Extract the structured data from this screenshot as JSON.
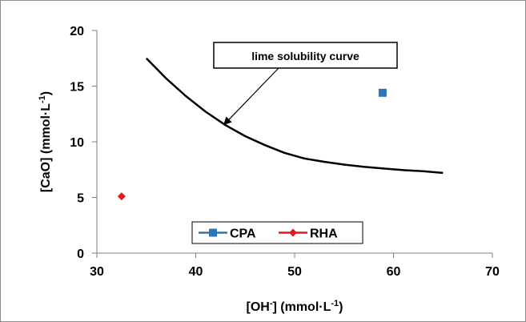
{
  "chart_data": {
    "type": "scatter",
    "title": "",
    "xlabel": "[OH-] (mmol·L-1)",
    "ylabel": "[CaO] (mmol·L-1)",
    "xlabel_parts": {
      "base": "[OH",
      "sup1": "-",
      "mid": "] (mmol·L",
      "sup2": "-1",
      "end": ")"
    },
    "ylabel_parts": {
      "base": "[CaO] (mmol·L",
      "sup": "-1",
      "end": ")"
    },
    "xlim": [
      30,
      70
    ],
    "ylim": [
      0,
      20
    ],
    "xticks": [
      "30",
      "40",
      "50",
      "60",
      "70"
    ],
    "yticks": [
      "0",
      "5",
      "10",
      "15",
      "20"
    ],
    "grid": false,
    "legend_position": "bottom-center",
    "series": [
      {
        "name": "CPA",
        "marker": "square",
        "color": "#2e75b6",
        "points": [
          [
            58.9,
            14.4
          ]
        ]
      },
      {
        "name": "RHA",
        "marker": "diamond",
        "color": "#e31a1c",
        "points": [
          [
            32.5,
            5.1
          ]
        ]
      }
    ],
    "curve": {
      "points": [
        [
          35,
          17.5
        ],
        [
          37,
          15.7
        ],
        [
          39,
          14.1
        ],
        [
          41,
          12.7
        ],
        [
          43,
          11.5
        ],
        [
          45,
          10.5
        ],
        [
          47,
          9.7
        ],
        [
          49,
          9.0
        ],
        [
          51,
          8.5
        ],
        [
          53,
          8.2
        ],
        [
          55,
          7.95
        ],
        [
          57,
          7.75
        ],
        [
          59,
          7.6
        ],
        [
          61,
          7.45
        ],
        [
          63,
          7.35
        ],
        [
          65,
          7.2
        ]
      ],
      "color": "#000000"
    },
    "annotation": {
      "text": "lime solubility curve",
      "arrow_to": [
        42.8,
        11.5
      ]
    }
  }
}
